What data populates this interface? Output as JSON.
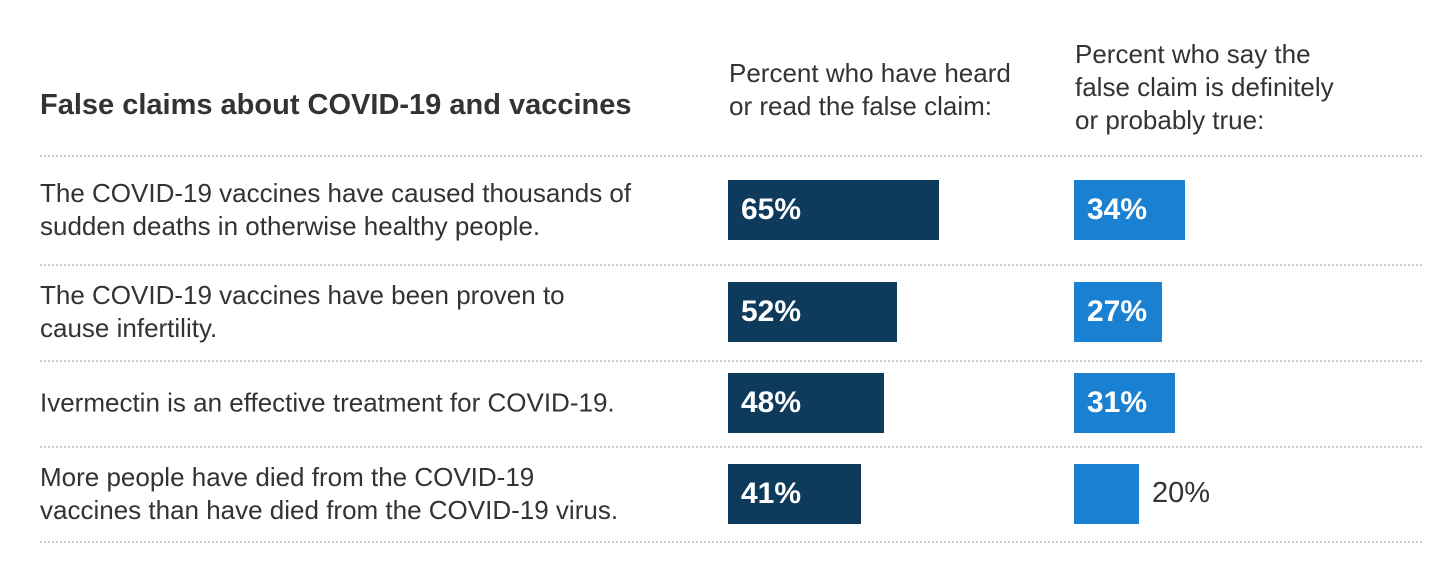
{
  "title": "False claims about COVID-19 and vaccines",
  "column_headers": {
    "heard": "Percent who have heard\nor read the false claim:",
    "believe": "Percent who say the\nfalse claim is definitely\nor probably true:"
  },
  "colors": {
    "heard_bar": "#0e3a5c",
    "believe_bar": "#1a80d2",
    "text": "#333333",
    "bar_label": "#ffffff",
    "separator": "#cccccc"
  },
  "rows": [
    {
      "claim": "The COVID-19 vaccines have caused thousands of\nsudden deaths in otherwise healthy people.",
      "heard_label": "65%",
      "believe_label": "34%"
    },
    {
      "claim": "The COVID-19 vaccines have been proven to\ncause infertility.",
      "heard_label": "52%",
      "believe_label": "27%"
    },
    {
      "claim": "Ivermectin is an effective treatment for COVID-19.",
      "heard_label": "48%",
      "believe_label": "31%"
    },
    {
      "claim": "More people have died from the COVID-19\nvaccines than have died from the COVID-19 virus.",
      "heard_label": "41%",
      "believe_label": "20%"
    }
  ],
  "chart_data": {
    "type": "bar",
    "orientation": "horizontal",
    "title": "False claims about COVID-19 and vaccines",
    "categories": [
      "The COVID-19 vaccines have caused thousands of sudden deaths in otherwise healthy people.",
      "The COVID-19 vaccines have been proven to cause infertility.",
      "Ivermectin is an effective treatment for COVID-19.",
      "More people have died from the COVID-19 vaccines than have died from the COVID-19 virus."
    ],
    "series": [
      {
        "name": "Percent who have heard or read the false claim",
        "values": [
          65,
          52,
          48,
          41
        ],
        "color": "#0e3a5c"
      },
      {
        "name": "Percent who say the false claim is definitely or probably true",
        "values": [
          34,
          27,
          31,
          20
        ],
        "color": "#1a80d2"
      }
    ],
    "value_format": "percent",
    "xlim": [
      0,
      100
    ],
    "grid": false,
    "legend_position": "column-headers",
    "data_labels": "inside-start, outside for smallest bar"
  }
}
